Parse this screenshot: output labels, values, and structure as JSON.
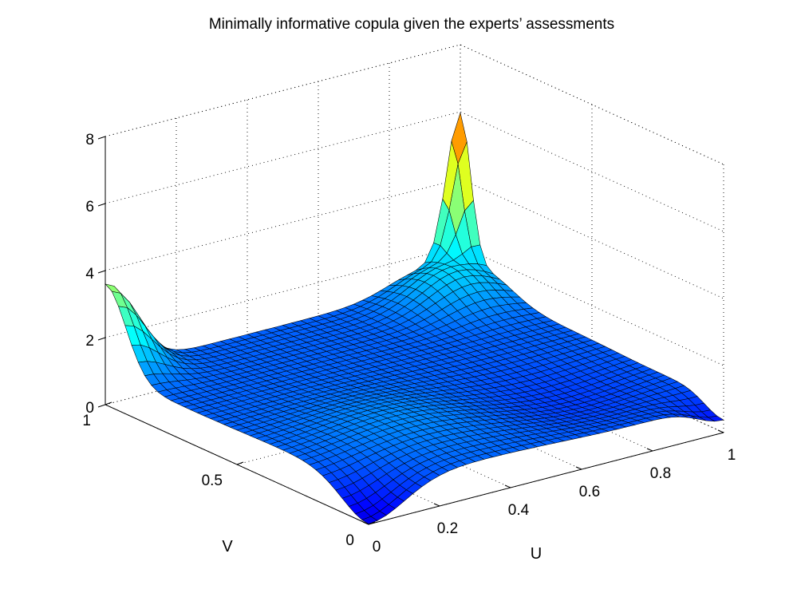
{
  "chart_data": {
    "type": "surface",
    "title": "Minimally informative copula given the experts’ assessments",
    "xlabel": "U",
    "ylabel": "V",
    "zlabel": "",
    "xlim": [
      0,
      1
    ],
    "ylim": [
      0,
      1
    ],
    "zlim": [
      0,
      8
    ],
    "x_ticks": [
      "0",
      "0.2",
      "0.4",
      "0.6",
      "0.8",
      "1"
    ],
    "y_ticks": [
      "0",
      "0.5",
      "1"
    ],
    "z_ticks": [
      "0",
      "2",
      "4",
      "6",
      "8"
    ],
    "grid": true,
    "colormap": "jet",
    "grid_resolution": 40,
    "corner_values": {
      "u0_v0": 0.0,
      "u1_v0": 0.4,
      "u0_v1": 3.6,
      "u1_v1": 5.6
    },
    "diagonal_peak": {
      "u": 0.9,
      "v": 0.9,
      "value": 2.0
    },
    "center_value": 1.0
  }
}
